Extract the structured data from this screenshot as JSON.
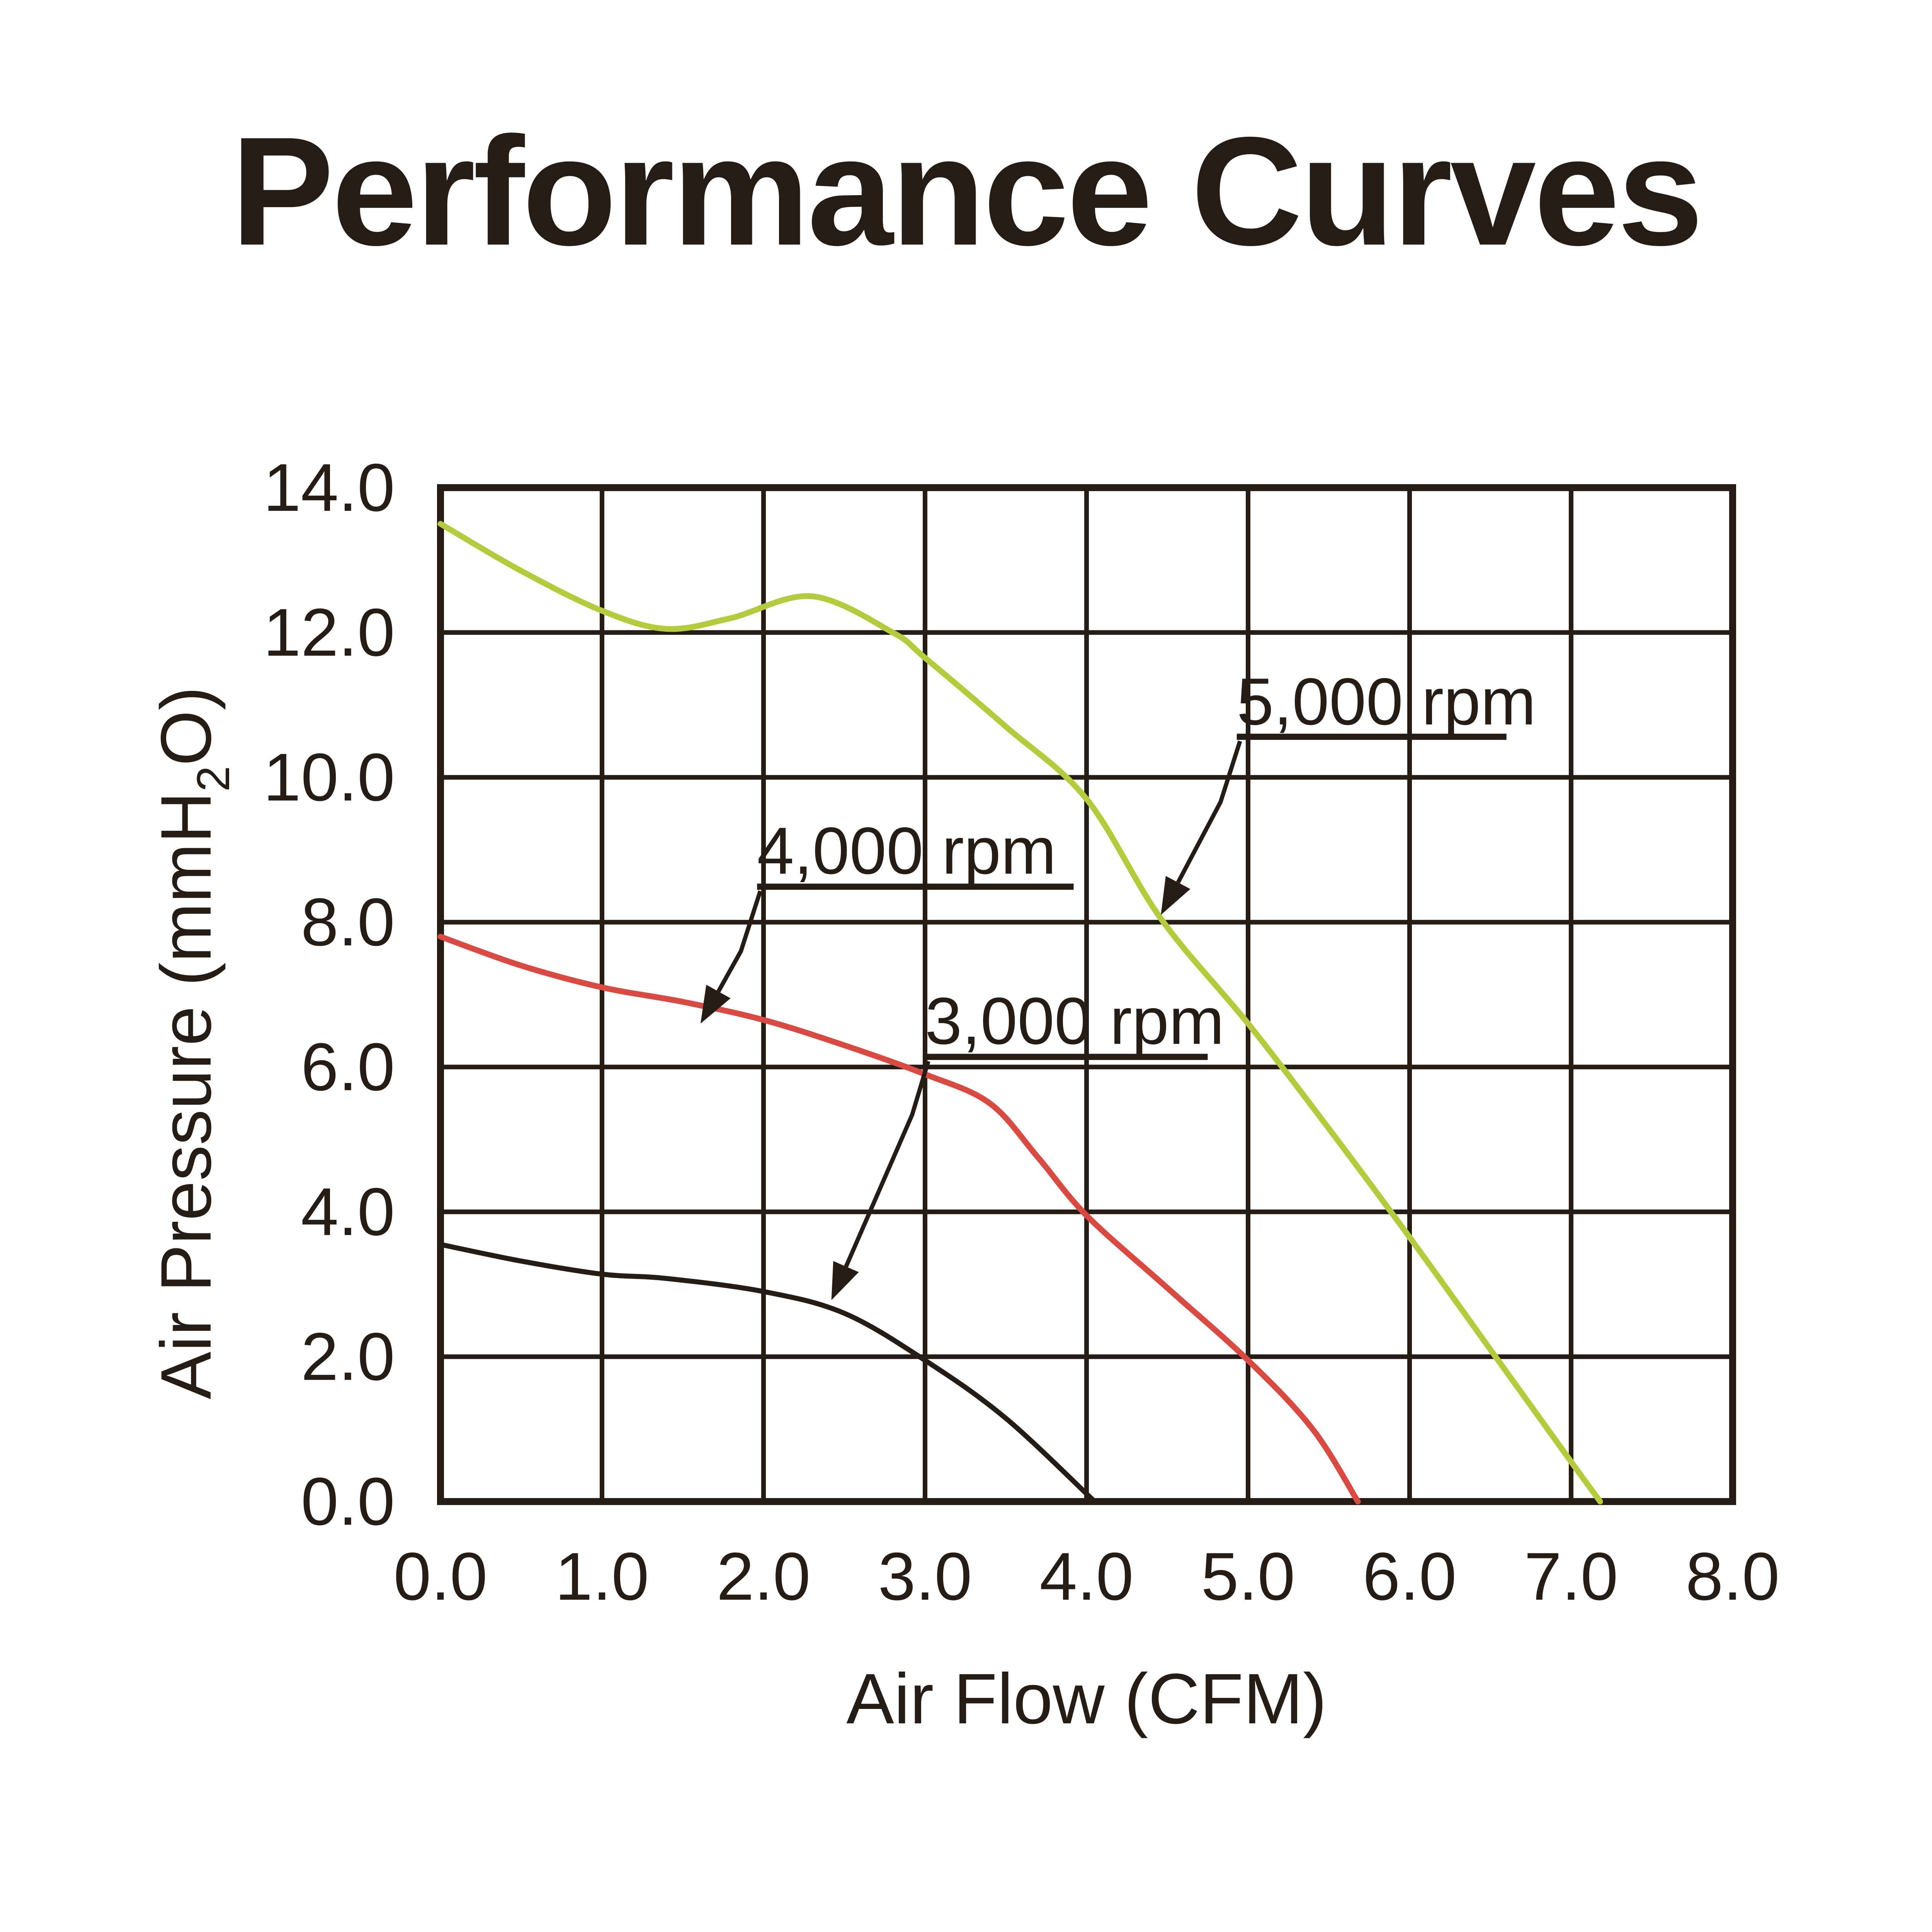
{
  "title": "Performance Curves",
  "colors": {
    "ink": "#261c16",
    "green": "#b3cb3d",
    "red": "#d94b42",
    "black_curve": "#261c16",
    "background": "#ffffff"
  },
  "chart_data": {
    "type": "line",
    "title": "Performance Curves",
    "xlabel": "Air Flow (CFM)",
    "ylabel": "Air Pressure (mmH2O)",
    "ylabel_parts": {
      "prefix": "Air Pressure (mmH",
      "subscript": "2",
      "suffix": "O)"
    },
    "grid": true,
    "legend_position": "none",
    "x_axis": {
      "min": 0,
      "max": 8,
      "tick_values": [
        0,
        1,
        2,
        3,
        4,
        5,
        6,
        7,
        8
      ],
      "tick_labels": [
        "0.0",
        "1.0",
        "2.0",
        "3.0",
        "4.0",
        "5.0",
        "6.0",
        "7.0",
        "8.0"
      ]
    },
    "y_axis": {
      "min": 0,
      "max": 14,
      "tick_values": [
        14,
        12,
        10,
        8,
        6,
        4,
        2,
        0
      ],
      "tick_labels": [
        "14.0",
        "12.0",
        "10.0",
        "8.0",
        "6.0",
        "4.0",
        "2.0",
        "0.0"
      ]
    },
    "series": [
      {
        "name": "5,000 rpm",
        "color_key": "green",
        "stroke_width": 15,
        "points": [
          [
            0,
            13.5
          ],
          [
            0.5,
            12.85
          ],
          [
            1.0,
            12.3
          ],
          [
            1.4,
            12.05
          ],
          [
            1.8,
            12.2
          ],
          [
            2.3,
            12.5
          ],
          [
            2.8,
            12.0
          ],
          [
            3.0,
            11.65
          ],
          [
            3.5,
            10.7
          ],
          [
            4.0,
            9.7
          ],
          [
            4.46,
            8.05
          ],
          [
            5.0,
            6.6
          ],
          [
            5.5,
            5.15
          ],
          [
            6.0,
            3.65
          ],
          [
            6.5,
            2.1
          ],
          [
            7.0,
            0.55
          ],
          [
            7.18,
            0
          ]
        ]
      },
      {
        "name": "4,000 rpm",
        "color_key": "red",
        "stroke_width": 15,
        "points": [
          [
            0,
            7.8
          ],
          [
            0.5,
            7.4
          ],
          [
            1.0,
            7.1
          ],
          [
            1.5,
            6.9
          ],
          [
            2.0,
            6.65
          ],
          [
            2.5,
            6.3
          ],
          [
            3.0,
            5.9
          ],
          [
            3.4,
            5.5
          ],
          [
            3.7,
            4.75
          ],
          [
            4.0,
            3.95
          ],
          [
            4.5,
            2.95
          ],
          [
            5.0,
            1.95
          ],
          [
            5.4,
            1.0
          ],
          [
            5.68,
            0
          ]
        ]
      },
      {
        "name": "3,000 rpm",
        "color_key": "black_curve",
        "stroke_width": 13,
        "points": [
          [
            0,
            3.55
          ],
          [
            0.5,
            3.32
          ],
          [
            1.0,
            3.14
          ],
          [
            1.4,
            3.08
          ],
          [
            2.0,
            2.9
          ],
          [
            2.5,
            2.6
          ],
          [
            3.0,
            1.95
          ],
          [
            3.5,
            1.15
          ],
          [
            4.05,
            0
          ]
        ]
      }
    ],
    "annotations": [
      {
        "label": "5,000 rpm",
        "text_pos": [
          4.93,
          10.73
        ],
        "underline": {
          "y": 10.56,
          "x1": 4.93,
          "x2": 6.6
        },
        "arrow": [
          [
            4.95,
            10.5
          ],
          [
            4.83,
            9.66
          ],
          [
            4.46,
            8.1
          ]
        ]
      },
      {
        "label": "4,000 rpm",
        "text_pos": [
          1.96,
          8.67
        ],
        "underline": {
          "y": 8.49,
          "x1": 1.96,
          "x2": 3.92
        },
        "arrow": [
          [
            1.98,
            8.43
          ],
          [
            1.86,
            7.6
          ],
          [
            1.61,
            6.6
          ]
        ]
      },
      {
        "label": "3,000 rpm",
        "text_pos": [
          3.0,
          6.32
        ],
        "underline": {
          "y": 6.14,
          "x1": 3.0,
          "x2": 4.75
        },
        "arrow": [
          [
            3.02,
            6.08
          ],
          [
            2.92,
            5.34
          ],
          [
            2.42,
            2.78
          ]
        ]
      }
    ]
  }
}
